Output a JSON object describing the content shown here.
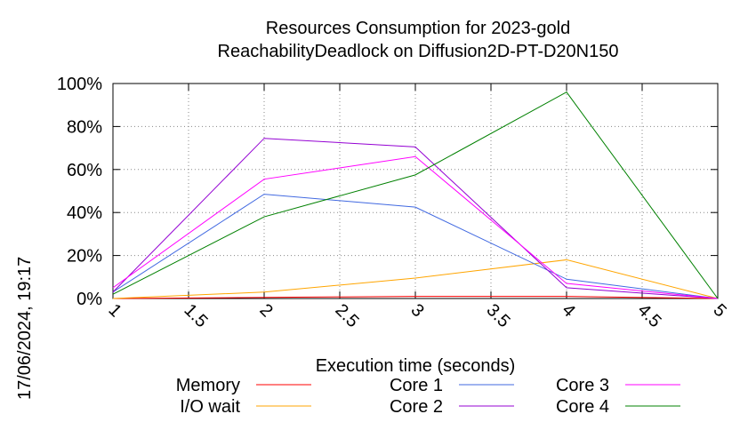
{
  "chart_data": {
    "type": "line",
    "title": "Resources Consumption for 2023-gold",
    "subtitle": "ReachabilityDeadlock on Diffusion2D-PT-D20N150",
    "xlabel": "Execution time (seconds)",
    "ylabel": "",
    "side_label": "17/06/2024, 19:17",
    "xlim": [
      1,
      5
    ],
    "ylim": [
      0,
      100
    ],
    "x_ticks": [
      1,
      1.5,
      2,
      2.5,
      3,
      3.5,
      4,
      4.5,
      5
    ],
    "x_tick_labels": [
      "1",
      "1.5",
      "2",
      "2.5",
      "3",
      "3.5",
      "4",
      "4.5",
      "5"
    ],
    "y_ticks": [
      0,
      20,
      40,
      60,
      80,
      100
    ],
    "y_tick_labels": [
      "0%",
      "20%",
      "40%",
      "60%",
      "80%",
      "100%"
    ],
    "grid": true,
    "legend_position": "bottom",
    "x": [
      1,
      2,
      3,
      4,
      5
    ],
    "series": [
      {
        "name": "Memory",
        "color": "#ff0000",
        "values": [
          0,
          0.5,
          1,
          1,
          0
        ]
      },
      {
        "name": "I/O wait",
        "color": "#ffa500",
        "values": [
          0,
          3,
          9.5,
          18,
          0
        ]
      },
      {
        "name": "Core 1",
        "color": "#4169e1",
        "values": [
          3,
          48.5,
          42.5,
          9,
          0
        ]
      },
      {
        "name": "Core 2",
        "color": "#9400d3",
        "values": [
          3,
          74.5,
          70.5,
          5,
          0
        ]
      },
      {
        "name": "Core 3",
        "color": "#ff00ff",
        "values": [
          5,
          55.5,
          66,
          7,
          0
        ]
      },
      {
        "name": "Core 4",
        "color": "#008000",
        "values": [
          2,
          38,
          57.5,
          96,
          0
        ]
      }
    ]
  }
}
